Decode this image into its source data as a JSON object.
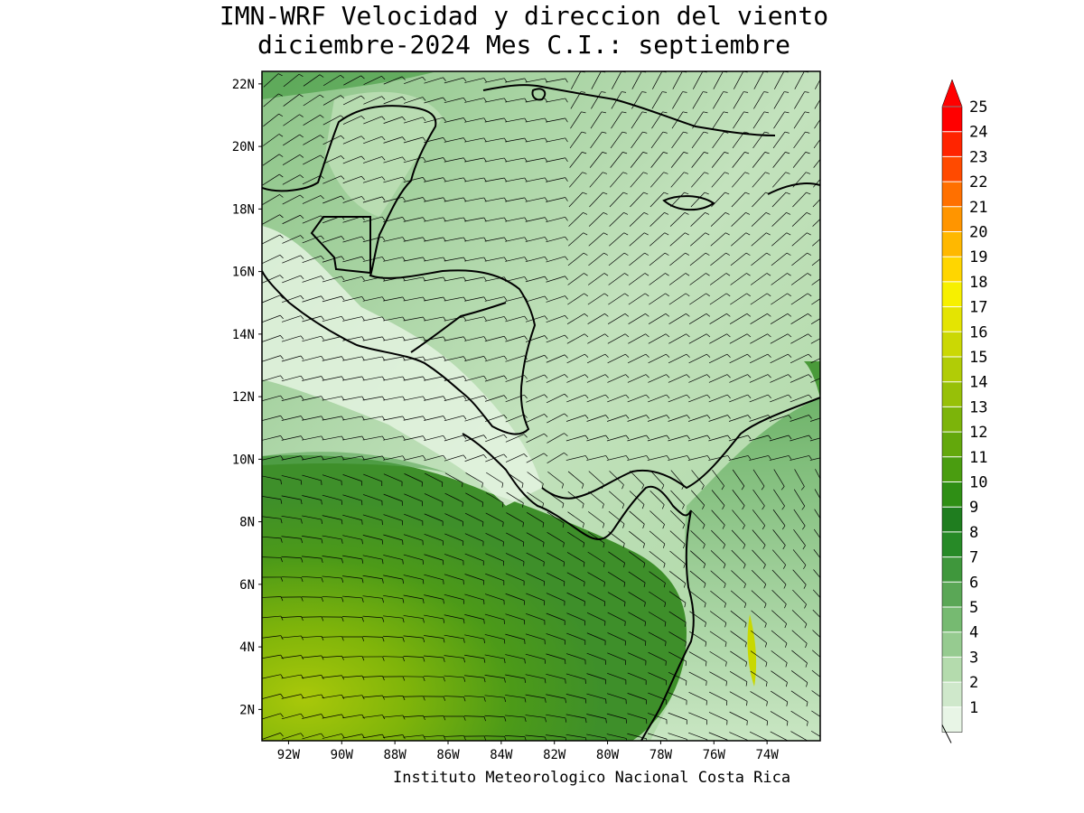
{
  "title": {
    "line1": "IMN-WRF Velocidad y direccion del viento",
    "line2": "diciembre-2024 Mes C.I.: septiembre"
  },
  "footer": "Instituto Meteorologico Nacional Costa Rica",
  "map": {
    "lon_range": [
      -93,
      -72
    ],
    "lat_range": [
      1,
      22.4
    ],
    "lat_ticks": [
      "2N",
      "4N",
      "6N",
      "8N",
      "10N",
      "12N",
      "14N",
      "16N",
      "18N",
      "20N",
      "22N"
    ],
    "lon_ticks": [
      "92W",
      "90W",
      "88W",
      "86W",
      "84W",
      "82W",
      "80W",
      "78W",
      "76W",
      "74W"
    ]
  },
  "colorbar": {
    "levels": [
      "1",
      "2",
      "3",
      "4",
      "5",
      "6",
      "7",
      "8",
      "9",
      "10",
      "11",
      "12",
      "13",
      "14",
      "15",
      "16",
      "17",
      "18",
      "19",
      "20",
      "21",
      "22",
      "23",
      "24",
      "25"
    ],
    "colors": [
      "#e8f5e6",
      "#cfe8cb",
      "#b4dbad",
      "#96cb90",
      "#76ba71",
      "#5aa756",
      "#3f973c",
      "#278a27",
      "#1f7d1f",
      "#2f8f15",
      "#4a9d10",
      "#63a80c",
      "#7cb40a",
      "#97c008",
      "#b1cc06",
      "#cbd804",
      "#e4e402",
      "#f7f000",
      "#ffd600",
      "#ffb800",
      "#ff9500",
      "#ff7000",
      "#ff4a00",
      "#ff2400",
      "#ff0000"
    ]
  }
}
